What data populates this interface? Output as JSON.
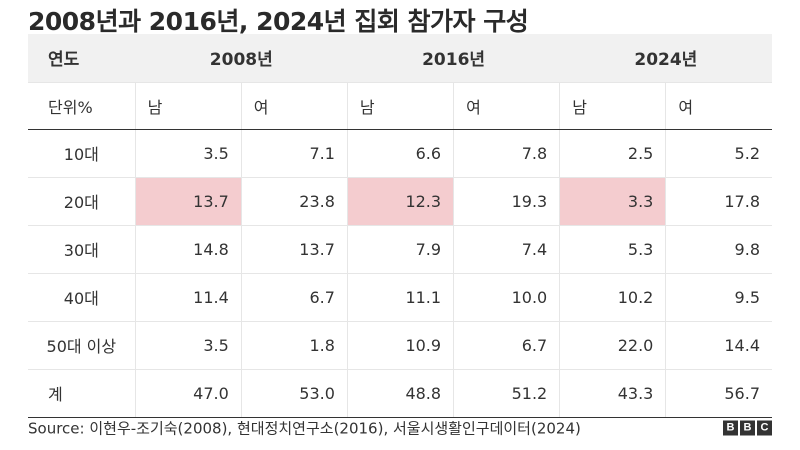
{
  "chart_data": {
    "type": "table",
    "title": "2008년과 2016년, 2024년 집회 참가자 구성",
    "header": {
      "year_label": "연도",
      "years": [
        "2008년",
        "2016년",
        "2024년"
      ],
      "unit_label": "단위%",
      "sex_labels": [
        "남",
        "여",
        "남",
        "여",
        "남",
        "여"
      ]
    },
    "rows": [
      {
        "label": "10대",
        "values": [
          "3.5",
          "7.1",
          "6.6",
          "7.8",
          "2.5",
          "5.2"
        ]
      },
      {
        "label": "20대",
        "values": [
          "13.7",
          "23.8",
          "12.3",
          "19.3",
          "3.3",
          "17.8"
        ]
      },
      {
        "label": "30대",
        "values": [
          "14.8",
          "13.7",
          "7.9",
          "7.4",
          "5.3",
          "9.8"
        ]
      },
      {
        "label": "40대",
        "values": [
          "11.4",
          "6.7",
          "11.1",
          "10.0",
          "10.2",
          "9.5"
        ]
      },
      {
        "label": "50대 이상",
        "values": [
          "3.5",
          "1.8",
          "10.9",
          "6.7",
          "22.0",
          "14.4"
        ]
      },
      {
        "label": "계",
        "values": [
          "47.0",
          "53.0",
          "48.8",
          "51.2",
          "43.3",
          "56.7"
        ]
      }
    ],
    "highlight": {
      "row": "20대",
      "columns": [
        0,
        2,
        4
      ],
      "color": "#f4cccf"
    },
    "source": "Source: 이현우-조기숙(2008), 현대정치연구소(2016), 서울시생활인구데이터(2024)"
  },
  "brand": {
    "logo_letters": [
      "B",
      "B",
      "C"
    ]
  }
}
